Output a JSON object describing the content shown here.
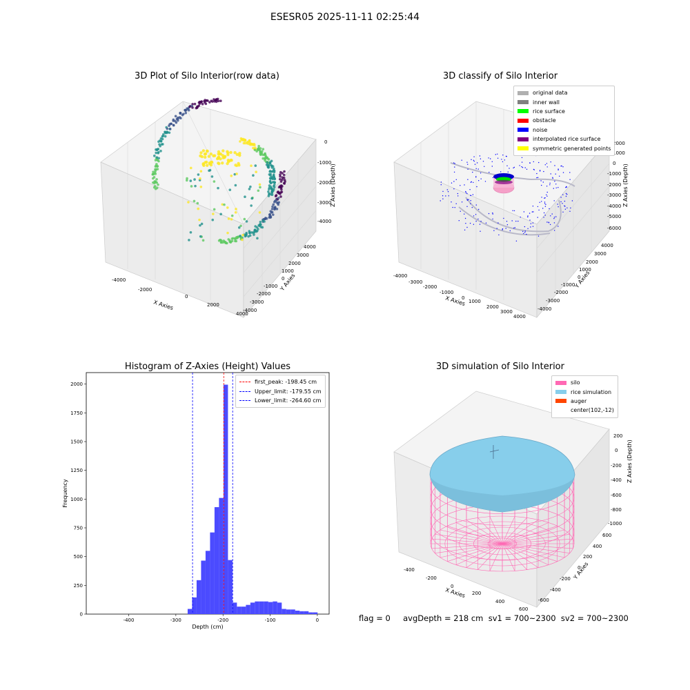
{
  "suptitle": "ESESR05 2025-11-11 02:25:44",
  "status_line": "flag = 0     avgDepth = 218 cm  sv1 = 700~2300  sv2 = 700~2300",
  "colors": {
    "hist_bar": "#4b4bff",
    "first_peak_line": "#ff0000",
    "limit_line": "#0000ff",
    "viridis": [
      "#440154",
      "#3b528b",
      "#21918c",
      "#5ec962",
      "#fde725"
    ]
  },
  "chart_data": [
    {
      "id": "raw",
      "type": "scatter",
      "title": "3D Plot of Silo Interior(row data)",
      "xlabel": "X Axies",
      "ylabel": "Y Axies",
      "zlabel": "Z Axies (Depth)",
      "x_ticks": [
        "-4000",
        "-2000",
        "0",
        "2000",
        "4000"
      ],
      "y_ticks": [
        "4000",
        "3000",
        "2000",
        "1000",
        "0",
        "-1000",
        "-2000",
        "-3000",
        "-4000"
      ],
      "z_ticks": [
        "0",
        "-1000",
        "-2000",
        "-3000",
        "-4000"
      ],
      "colormap": "viridis"
    },
    {
      "id": "classify",
      "type": "scatter",
      "title": "3D classify of Silo Interior",
      "xlabel": "X Axies",
      "ylabel": "Y Axies",
      "zlabel": "Z Axies (Depth)",
      "x_ticks": [
        "-4000",
        "-3000",
        "-2000",
        "-1000",
        "0",
        "1000",
        "2000",
        "3000",
        "4000"
      ],
      "y_ticks": [
        "4000",
        "3000",
        "2000",
        "1000",
        "0",
        "-1000",
        "-2000",
        "-3000",
        "-4000"
      ],
      "z_ticks": [
        "2000",
        "1000",
        "0",
        "-1000",
        "-2000",
        "-3000",
        "-4000",
        "-5000",
        "-6000"
      ],
      "legend": [
        {
          "label": "original data",
          "color": "#b0b0b0"
        },
        {
          "label": "inner wall",
          "color": "#808080"
        },
        {
          "label": "rice surface",
          "color": "#00ff00"
        },
        {
          "label": "obstacle",
          "color": "#ff0000"
        },
        {
          "label": "noise",
          "color": "#0000ff"
        },
        {
          "label": "interpolated rice surface",
          "color": "#800080"
        },
        {
          "label": "symmetric generated points",
          "color": "#ffff00"
        }
      ]
    },
    {
      "id": "histogram",
      "type": "bar",
      "title": "Histogram of Z-Axies (Height) Values",
      "xlabel": "Depth (cm)",
      "ylabel": "Frequency",
      "xlim": [
        -490,
        25
      ],
      "ylim": [
        0,
        2100
      ],
      "x_ticks": [
        -400,
        -300,
        -200,
        -100,
        0
      ],
      "y_ticks": [
        0,
        250,
        500,
        750,
        1000,
        1250,
        1500,
        1750,
        2000
      ],
      "bin_width": 9.5,
      "bins": [
        {
          "x": -275,
          "count": 45
        },
        {
          "x": -265.5,
          "count": 145
        },
        {
          "x": -256,
          "count": 295
        },
        {
          "x": -246.5,
          "count": 465
        },
        {
          "x": -237,
          "count": 550
        },
        {
          "x": -227.5,
          "count": 710
        },
        {
          "x": -218,
          "count": 930
        },
        {
          "x": -208.5,
          "count": 1010
        },
        {
          "x": -199,
          "count": 1995
        },
        {
          "x": -189.5,
          "count": 470
        },
        {
          "x": -180,
          "count": 100
        },
        {
          "x": -170.5,
          "count": 65
        },
        {
          "x": -161,
          "count": 65
        },
        {
          "x": -151.5,
          "count": 80
        },
        {
          "x": -142,
          "count": 100
        },
        {
          "x": -132.5,
          "count": 110
        },
        {
          "x": -123,
          "count": 110
        },
        {
          "x": -113.5,
          "count": 110
        },
        {
          "x": -104,
          "count": 105
        },
        {
          "x": -94.5,
          "count": 110
        },
        {
          "x": -85,
          "count": 100
        },
        {
          "x": -75.5,
          "count": 45
        },
        {
          "x": -66,
          "count": 40
        },
        {
          "x": -56.5,
          "count": 40
        },
        {
          "x": -47,
          "count": 30
        },
        {
          "x": -37.5,
          "count": 25
        },
        {
          "x": -28,
          "count": 25
        },
        {
          "x": -18.5,
          "count": 15
        },
        {
          "x": -9,
          "count": 15
        }
      ],
      "vlines": [
        {
          "label": "first_peak: -198.45 cm",
          "x": -198.45,
          "color": "#ff0000"
        },
        {
          "label": "Upper_limit: -179.55 cm",
          "x": -179.55,
          "color": "#0000ff"
        },
        {
          "label": "Lower_limit: -264.60 cm",
          "x": -264.6,
          "color": "#0000ff"
        }
      ]
    },
    {
      "id": "simulation",
      "type": "scatter",
      "title": "3D simulation of Silo Interior",
      "xlabel": "X Axies",
      "ylabel": "Y Axies",
      "zlabel": "Z Axies (Depth)",
      "x_ticks": [
        "-400",
        "-200",
        "0",
        "200",
        "400",
        "600"
      ],
      "y_ticks": [
        "600",
        "400",
        "200",
        "0",
        "-200",
        "-400",
        "-600"
      ],
      "z_ticks": [
        "200",
        "0",
        "-200",
        "-400",
        "-600",
        "-800",
        "-1000"
      ],
      "legend": [
        {
          "label": "silo",
          "color": "#ff69b4"
        },
        {
          "label": "rice simulation",
          "color": "#87ceeb"
        },
        {
          "label": "auger",
          "color": "#ff4500"
        },
        {
          "label": "center(102,-12)",
          "color": ""
        }
      ]
    }
  ]
}
